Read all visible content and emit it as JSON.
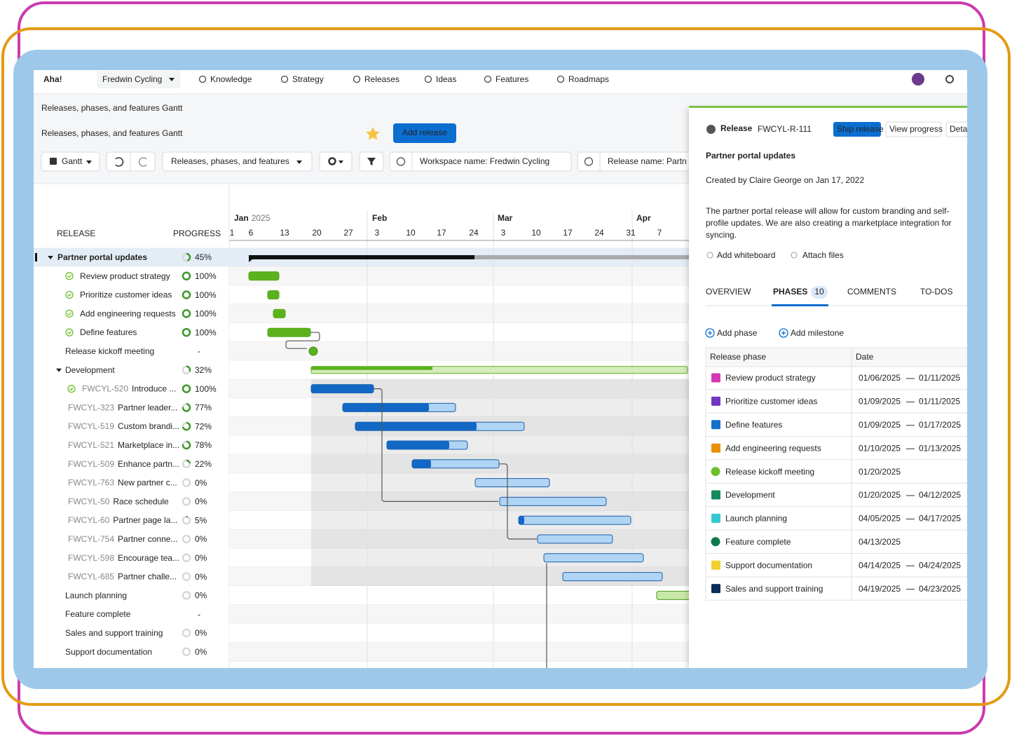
{
  "nav": {
    "logo": "Aha!",
    "workspace": "Fredwin Cycling",
    "items": [
      "Knowledge",
      "Strategy",
      "Releases",
      "Ideas",
      "Features",
      "Roadmaps"
    ]
  },
  "header": {
    "breadcrumb": "Releases, phases, and features Gantt",
    "title": "Releases, phases, and features Gantt",
    "add_button": "Add release"
  },
  "toolbar": {
    "view": "Gantt",
    "preset": "Releases, phases, and features",
    "filters": [
      "Workspace name: Fredwin Cycling",
      "Release name: Partn"
    ]
  },
  "gantt": {
    "columns": [
      "RELEASE",
      "PROGRESS"
    ],
    "months": [
      {
        "name": "Jan",
        "year": "2025"
      },
      {
        "name": "Feb"
      },
      {
        "name": "Mar"
      },
      {
        "name": "Apr"
      }
    ],
    "days": [
      "1",
      "6",
      "13",
      "20",
      "27",
      "3",
      "10",
      "17",
      "24",
      "3",
      "10",
      "17",
      "24",
      "31",
      "7"
    ],
    "rows": [
      {
        "name": "Partner portal updates",
        "progress": "45%"
      },
      {
        "name": "Review product strategy",
        "progress": "100%"
      },
      {
        "name": "Prioritize customer ideas",
        "progress": "100%"
      },
      {
        "name": "Add engineering requests",
        "progress": "100%"
      },
      {
        "name": "Define features",
        "progress": "100%"
      },
      {
        "name": "Release kickoff meeting",
        "progress": "-"
      },
      {
        "name": "Development",
        "progress": "32%"
      },
      {
        "id": "FWCYL-520",
        "name": "Introduce ...",
        "progress": "100%"
      },
      {
        "id": "FWCYL-323",
        "name": "Partner leader...",
        "progress": "77%"
      },
      {
        "id": "FWCYL-519",
        "name": "Custom brandi...",
        "progress": "72%"
      },
      {
        "id": "FWCYL-521",
        "name": "Marketplace in...",
        "progress": "78%"
      },
      {
        "id": "FWCYL-509",
        "name": "Enhance partn...",
        "progress": "22%"
      },
      {
        "id": "FWCYL-763",
        "name": "New partner c...",
        "progress": "0%"
      },
      {
        "id": "FWCYL-50",
        "name": "Race schedule",
        "progress": "0%"
      },
      {
        "id": "FWCYL-60",
        "name": "Partner page la...",
        "progress": "5%"
      },
      {
        "id": "FWCYL-754",
        "name": "Partner conne...",
        "progress": "0%"
      },
      {
        "id": "FWCYL-598",
        "name": "Encourage tea...",
        "progress": "0%"
      },
      {
        "id": "FWCYL-685",
        "name": "Partner challe...",
        "progress": "0%"
      },
      {
        "name": "Launch planning",
        "progress": "0%"
      },
      {
        "name": "Feature complete",
        "progress": "-"
      },
      {
        "name": "Sales and support training",
        "progress": "0%"
      },
      {
        "name": "Support documentation",
        "progress": "0%"
      }
    ]
  },
  "panel": {
    "kind": "Release",
    "id": "FWCYL-R-111",
    "buttons": [
      "Ship release",
      "View progress",
      "Detai"
    ],
    "title": "Partner portal updates",
    "created": "Created by Claire George on Jan 17, 2022",
    "description": [
      "The partner portal release will allow for custom branding and self-",
      "profile updates. We are also creating a marketplace integration for",
      "syncing."
    ],
    "attachments": [
      "Add whiteboard",
      "Attach files"
    ],
    "tabs": [
      "OVERVIEW",
      "PHASES",
      "COMMENTS",
      "TO-DOS"
    ],
    "phase_count": "10",
    "actions": [
      "Add phase",
      "Add milestone"
    ],
    "table_headers": [
      "Release phase",
      "Date"
    ],
    "phases": [
      {
        "name": "Review product strategy",
        "start": "01/06/2025",
        "end": "01/11/2025",
        "color": "#d43ab4",
        "shape": "square"
      },
      {
        "name": "Prioritize customer ideas",
        "start": "01/09/2025",
        "end": "01/11/2025",
        "color": "#7435c0",
        "shape": "square"
      },
      {
        "name": "Define features",
        "start": "01/09/2025",
        "end": "01/17/2025",
        "color": "#1570c9",
        "shape": "square"
      },
      {
        "name": "Add engineering requests",
        "start": "01/10/2025",
        "end": "01/13/2025",
        "color": "#e8900c",
        "shape": "square"
      },
      {
        "name": "Release kickoff meeting",
        "start": "01/20/2025",
        "color": "#6cbf2a",
        "shape": "circle"
      },
      {
        "name": "Development",
        "start": "01/20/2025",
        "end": "04/12/2025",
        "color": "#138a5a",
        "shape": "square"
      },
      {
        "name": "Launch planning",
        "start": "04/05/2025",
        "end": "04/17/2025",
        "color": "#36c8d4",
        "shape": "square"
      },
      {
        "name": "Feature complete",
        "start": "04/13/2025",
        "color": "#0f7a4c",
        "shape": "circle"
      },
      {
        "name": "Support documentation",
        "start": "04/14/2025",
        "end": "04/24/2025",
        "color": "#f0cf2e",
        "shape": "square"
      },
      {
        "name": "Sales and support training",
        "start": "04/19/2025",
        "end": "04/23/2025",
        "color": "#0b2c55",
        "shape": "square"
      }
    ]
  }
}
